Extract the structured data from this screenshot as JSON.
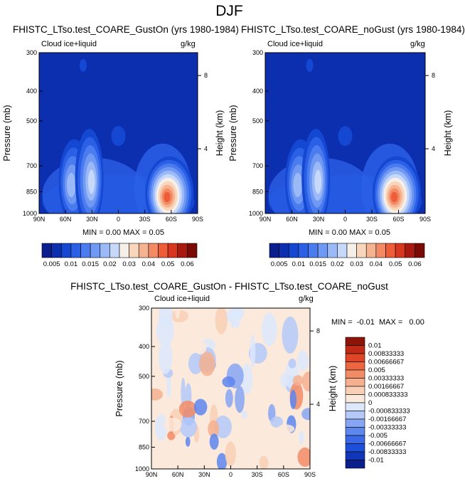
{
  "page_title": "DJF",
  "colors": {
    "top_scale": [
      "#0a1e8c",
      "#0c2fb0",
      "#1447d2",
      "#2a5fe6",
      "#4a7cf0",
      "#7099f4",
      "#9cb9f7",
      "#c7d9fa",
      "#f7f0e8",
      "#f8d6bc",
      "#f6b391",
      "#f38a64",
      "#ee5c38",
      "#d8361e",
      "#a81a10",
      "#7a0a06"
    ],
    "diff_scale": [
      "#0a1e8c",
      "#1236b8",
      "#1e4fd8",
      "#3a68e6",
      "#5d86ee",
      "#86a6f3",
      "#b4c9f8",
      "#dce7fb",
      "#fbe9dc",
      "#f9cfb5",
      "#f6b08f",
      "#f28c66",
      "#ec6640",
      "#dd4526",
      "#c02a16",
      "#8c1409"
    ]
  },
  "chart_data": [
    {
      "type": "heatmap",
      "title": "FHISTC_LTso.test_COARE_GustOn (yrs 1980-1984)",
      "left_label": "Cloud ice+liquid",
      "right_label": "g/kg",
      "xlabel": "",
      "ylabel": "Pressure (mb)",
      "right_axis_label": "Height (km)",
      "x_ticks": [
        "90N",
        "60N",
        "30N",
        "0",
        "30S",
        "60S",
        "90S"
      ],
      "y_ticks": [
        "300",
        "400",
        "500",
        "700",
        "850",
        "1000"
      ],
      "height_ticks": [
        "8",
        "4"
      ],
      "y_log": true,
      "stats": "MIN =  0.00  MAX =  0.05",
      "features": [
        {
          "lat": 50,
          "p": 790,
          "value": 0.028
        },
        {
          "lat": 33,
          "p": 770,
          "value": 0.03
        },
        {
          "lat": -58,
          "p": 860,
          "value": 0.055
        },
        {
          "lat": 0,
          "p": 560,
          "value": 0.006
        },
        {
          "lat": 40,
          "p": 330,
          "value": 0.006
        }
      ]
    },
    {
      "type": "heatmap",
      "title": "FHISTC_LTso.test_COARE_noGust (yrs 1980-1984)",
      "left_label": "Cloud ice+liquid",
      "right_label": "g/kg",
      "xlabel": "",
      "ylabel": "Pressure (mb)",
      "right_axis_label": "Height (km)",
      "x_ticks": [
        "90N",
        "60N",
        "30N",
        "0",
        "30S",
        "60S",
        "90S"
      ],
      "y_ticks": [
        "300",
        "400",
        "500",
        "700",
        "850",
        "1000"
      ],
      "height_ticks": [
        "8",
        "4"
      ],
      "y_log": true,
      "stats": "MIN =  0.00  MAX =  0.05",
      "features": [
        {
          "lat": 50,
          "p": 790,
          "value": 0.028
        },
        {
          "lat": 33,
          "p": 770,
          "value": 0.03
        },
        {
          "lat": -58,
          "p": 860,
          "value": 0.055
        },
        {
          "lat": 0,
          "p": 560,
          "value": 0.006
        },
        {
          "lat": 40,
          "p": 330,
          "value": 0.006
        }
      ]
    },
    {
      "type": "heatmap",
      "title": "FHISTC_LTso.test_COARE_GustOn - FHISTC_LTso.test_COARE_noGust",
      "left_label": "Cloud ice+liquid",
      "right_label": "g/kg",
      "xlabel": "",
      "ylabel": "Pressure (mb)",
      "right_axis_label": "Height (km)",
      "x_ticks": [
        "90N",
        "60N",
        "30N",
        "0",
        "30S",
        "60S",
        "90S"
      ],
      "y_ticks": [
        "300",
        "400",
        "500",
        "700",
        "850",
        "1000"
      ],
      "height_ticks": [
        "8",
        "4"
      ],
      "y_log": true,
      "stats": "MIN =  -0.01  MAX =   0.00"
    }
  ],
  "colorbar_top": {
    "labels": [
      "0.005",
      "0.01",
      "0.015",
      "0.02",
      "0.03",
      "0.04",
      "0.05",
      "0.06"
    ]
  },
  "colorbar_diff": {
    "labels": [
      "0.01",
      "0.00833333",
      "0.00666667",
      "0.005",
      "0.00333333",
      "0.00166667",
      "0.000833333",
      "0",
      "-0.000833333",
      "-0.00166667",
      "-0.00333333",
      "-0.005",
      "-0.00666667",
      "-0.00833333",
      "-0.01"
    ]
  }
}
